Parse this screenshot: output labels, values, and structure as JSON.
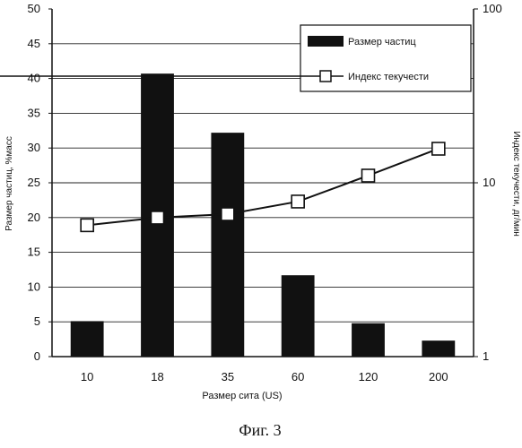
{
  "chart_data": {
    "type": "bar",
    "categories": [
      "10",
      "18",
      "35",
      "60",
      "120",
      "200"
    ],
    "series": [
      {
        "name": "Размер частиц",
        "kind": "bar",
        "axis": "left",
        "values": [
          5.1,
          40.7,
          32.2,
          11.7,
          4.8,
          2.3
        ]
      },
      {
        "name": "Индекс текучести",
        "kind": "line",
        "axis": "right",
        "marker": "square",
        "values": [
          5.7,
          6.3,
          6.6,
          7.8,
          11.0,
          15.7
        ]
      }
    ],
    "xlabel": "Размер сита (US)",
    "ylabel": "Размер частиц, %масс",
    "y2label": "Индекс текучести, дг/мин",
    "ylim": [
      0,
      50
    ],
    "yticks": [
      "0",
      "5",
      "10",
      "15",
      "20",
      "25",
      "30",
      "35",
      "40",
      "45",
      "50"
    ],
    "y2lim": [
      1,
      100
    ],
    "y2scale": "log",
    "y2ticks": [
      "1",
      "10",
      "100"
    ],
    "grid": true,
    "legend": "top-right",
    "bar_color": "#111111",
    "line_color": "#111111"
  },
  "caption": "Фиг. 3"
}
